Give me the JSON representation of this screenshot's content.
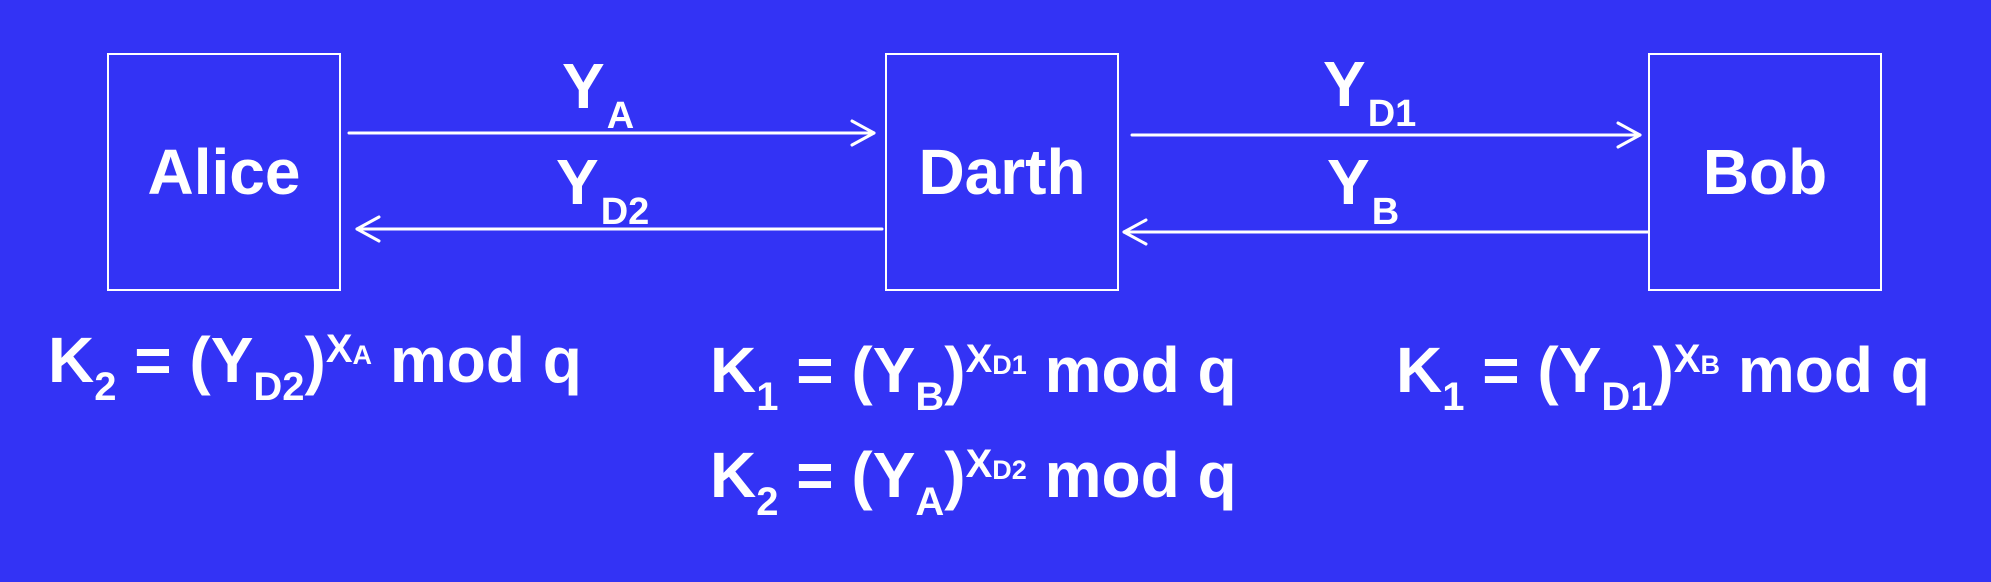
{
  "nodes": {
    "alice": "Alice",
    "darth": "Darth",
    "bob": "Bob"
  },
  "messages": [
    {
      "base": "Y",
      "sub": "A"
    },
    {
      "base": "Y",
      "sub": "D2"
    },
    {
      "base": "Y",
      "sub": "D1"
    },
    {
      "base": "Y",
      "sub": "B"
    }
  ],
  "equations": [
    {
      "k": "K",
      "k_sub": "2",
      "eq": " = (",
      "y": "Y",
      "y_sub": "D2",
      "close": ")",
      "x": "X",
      "x_sub": "A",
      "tail": " mod q"
    },
    {
      "k": "K",
      "k_sub": "1",
      "eq": " = (",
      "y": "Y",
      "y_sub": "B",
      "close": ")",
      "x": "X",
      "x_sub": "D1",
      "tail": " mod q"
    },
    {
      "k": "K",
      "k_sub": "2",
      "eq": " = (",
      "y": "Y",
      "y_sub": "A",
      "close": ")",
      "x": "X",
      "x_sub": "D2",
      "tail": " mod q"
    },
    {
      "k": "K",
      "k_sub": "1",
      "eq": " = (",
      "y": "Y",
      "y_sub": "D1",
      "close": ")",
      "x": "X",
      "x_sub": "B",
      "tail": " mod q"
    }
  ],
  "colors": {
    "background": "#3333f5",
    "foreground": "#ffffff"
  }
}
